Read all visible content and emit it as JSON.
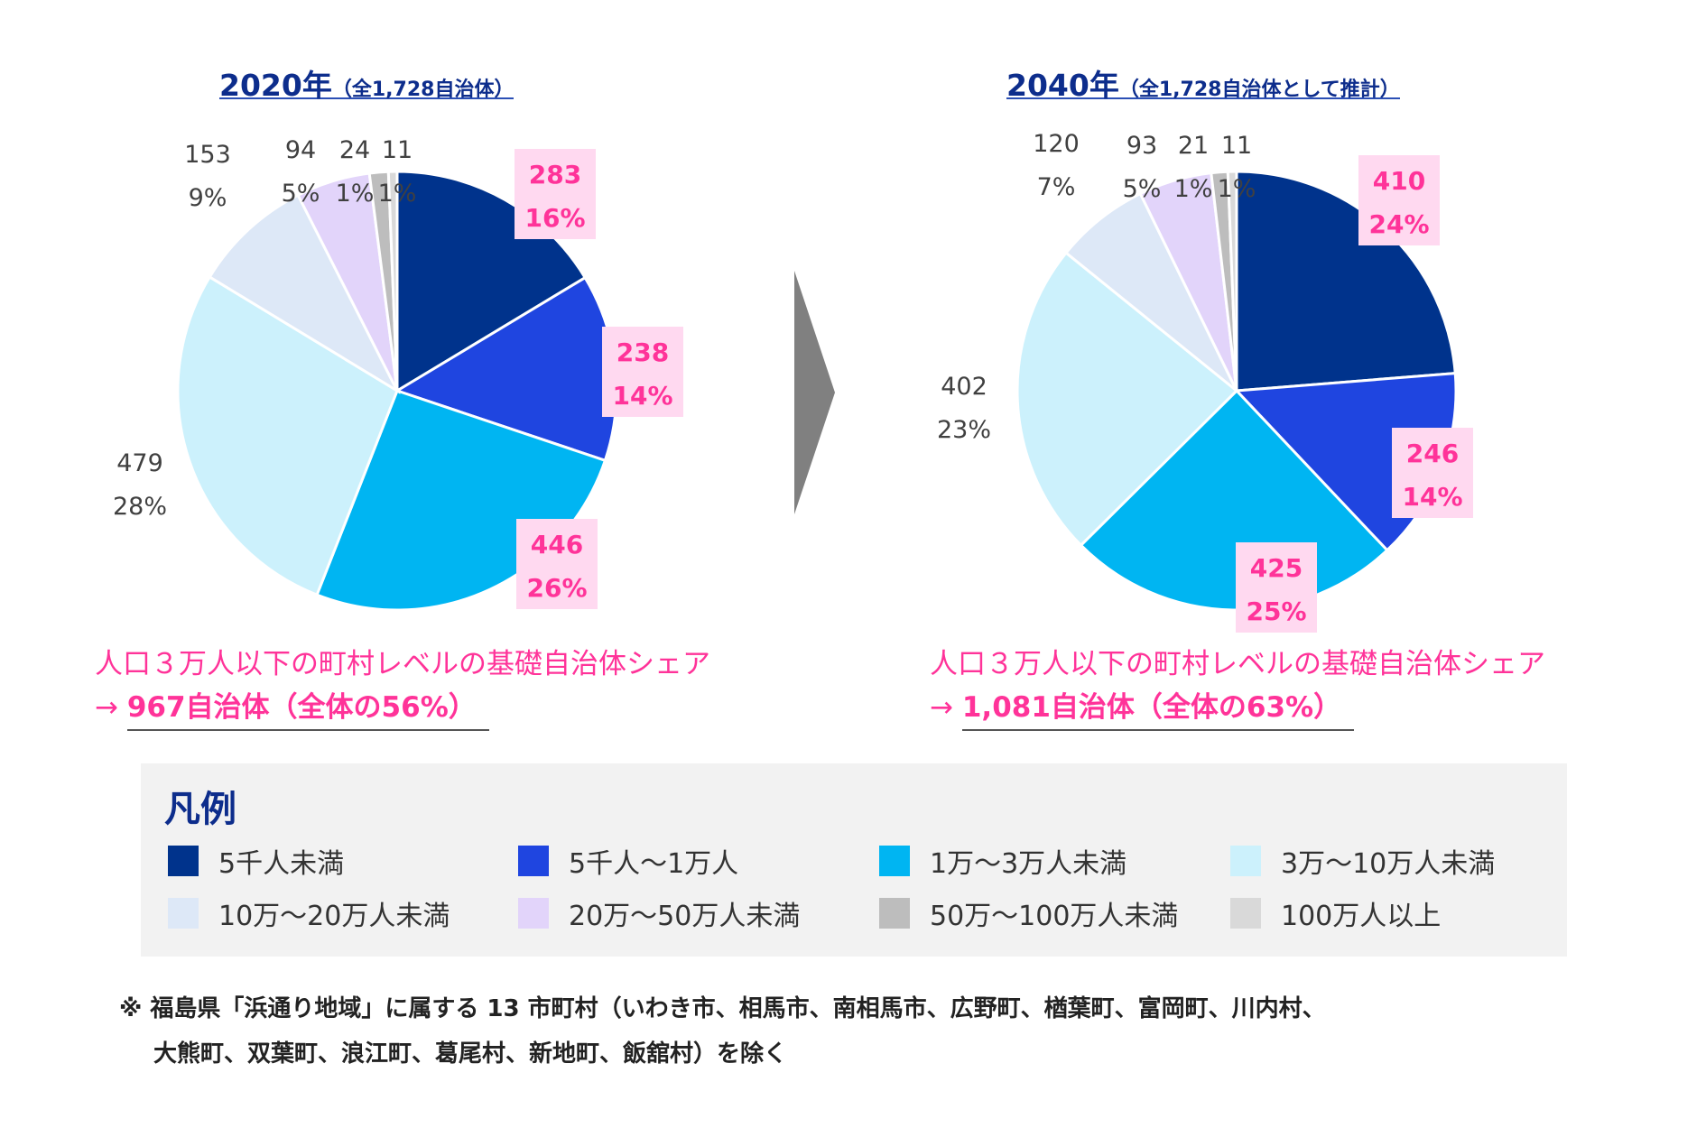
{
  "titles": {
    "left_main": "2020年",
    "left_sub": "（全1,728自治体）",
    "right_main": "2040年",
    "right_sub": "（全1,728自治体として推計）"
  },
  "chart_data": [
    {
      "type": "pie",
      "title": "2020年（全1,728自治体）",
      "categories": [
        "5千人未満",
        "5千人～1万人",
        "1万～3万人未満",
        "3万～10万人未満",
        "10万～20万人未満",
        "20万～50万人未満",
        "50万～100万人未満",
        "100万人以上"
      ],
      "values": [
        283,
        238,
        446,
        479,
        153,
        94,
        24,
        11
      ],
      "percent_labels": [
        "16%",
        "14%",
        "26%",
        "28%",
        "9%",
        "5%",
        "1%",
        "1%"
      ],
      "count_labels": [
        "283",
        "238",
        "446",
        "479",
        "153",
        "94",
        "24",
        "11"
      ],
      "highlight_categories": [
        0,
        1,
        2
      ]
    },
    {
      "type": "pie",
      "title": "2040年（全1,728自治体として推計）",
      "categories": [
        "5千人未満",
        "5千人～1万人",
        "1万～3万人未満",
        "3万～10万人未満",
        "10万～20万人未満",
        "20万～50万人未満",
        "50万～100万人未満",
        "100万人以上"
      ],
      "values": [
        410,
        246,
        425,
        402,
        120,
        93,
        21,
        11
      ],
      "percent_labels": [
        "24%",
        "14%",
        "25%",
        "23%",
        "7%",
        "5%",
        "1%",
        "1%"
      ],
      "count_labels": [
        "410",
        "246",
        "425",
        "402",
        "120",
        "93",
        "21",
        "11"
      ],
      "highlight_categories": [
        0,
        1,
        2
      ]
    }
  ],
  "colors": {
    "series": [
      "#00338c",
      "#1f45e0",
      "#00b5f2",
      "#ccf1fc",
      "#dde8f7",
      "#e2d4fa",
      "#bdbdbd",
      "#d9d9d9"
    ],
    "highlight_text": "#ff3399",
    "highlight_box": "#ffd9f0",
    "title": "#0d2d8c",
    "arrow": "#808080"
  },
  "summary_left": {
    "line1": "人口３万人以下の町村レベルの基礎自治体シェア",
    "arrow": "→ ",
    "line2": "967自治体（全体の56%）"
  },
  "summary_right": {
    "line1": "人口３万人以下の町村レベルの基礎自治体シェア",
    "arrow": "→ ",
    "line2": "1,081自治体（全体の63%）"
  },
  "legend": {
    "title": "凡例",
    "items": [
      "5千人未満",
      "5千人～1万人",
      "1万～3万人未満",
      "3万～10万人未満",
      "10万～20万人未満",
      "20万～50万人未満",
      "50万～100万人未満",
      "100万人以上"
    ]
  },
  "footnote": {
    "line1": "※ 福島県「浜通り地域」に属する 13 市町村（いわき市、相馬市、南相馬市、広野町、楢葉町、富岡町、川内村、",
    "line2": "大熊町、双葉町、浪江町、葛尾村、新地町、飯舘村）を除く"
  }
}
